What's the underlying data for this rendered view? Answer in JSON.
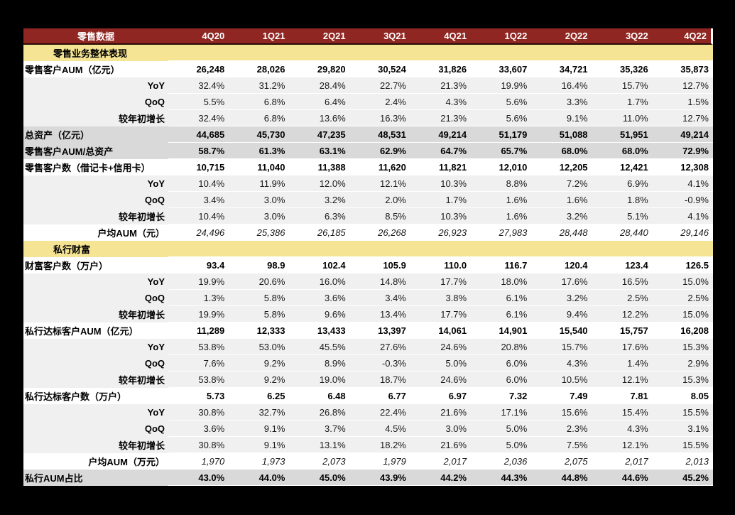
{
  "theme": {
    "page_background": "#000000",
    "header_background": "#8F2621",
    "header_text_color": "#FFFFFF",
    "header_divider_color": "#260B07",
    "section_row_background": "#F5E494",
    "highlight_row_background": "#D9D9D9",
    "sub_row_background": "#F0F0F0"
  },
  "chart_data": {
    "type": "table",
    "title": "零售数据",
    "columns": [
      "4Q20",
      "1Q21",
      "2Q21",
      "3Q21",
      "4Q21",
      "1Q22",
      "2Q22",
      "3Q22",
      "4Q22"
    ],
    "rows": [
      {
        "kind": "section",
        "label": "零售业务整体表现",
        "values": [
          "",
          "",
          "",
          "",
          "",
          "",
          "",
          "",
          ""
        ]
      },
      {
        "kind": "main",
        "label": "零售客户AUM（亿元）",
        "values": [
          "26,248",
          "28,026",
          "29,820",
          "30,524",
          "31,826",
          "33,607",
          "34,721",
          "35,326",
          "35,873"
        ]
      },
      {
        "kind": "sub",
        "label": "YoY",
        "values": [
          "32.4%",
          "31.2%",
          "28.4%",
          "22.7%",
          "21.3%",
          "19.9%",
          "16.4%",
          "15.7%",
          "12.7%"
        ]
      },
      {
        "kind": "sub",
        "label": "QoQ",
        "values": [
          "5.5%",
          "6.8%",
          "6.4%",
          "2.4%",
          "4.3%",
          "5.6%",
          "3.3%",
          "1.7%",
          "1.5%"
        ]
      },
      {
        "kind": "sub",
        "label": "较年初增长",
        "values": [
          "32.4%",
          "6.8%",
          "13.6%",
          "16.3%",
          "21.3%",
          "5.6%",
          "9.1%",
          "11.0%",
          "12.7%"
        ]
      },
      {
        "kind": "main-gray",
        "label": "总资产（亿元）",
        "values": [
          "44,685",
          "45,730",
          "47,235",
          "48,531",
          "49,214",
          "51,179",
          "51,088",
          "51,951",
          "49,214"
        ]
      },
      {
        "kind": "main-gray",
        "label": "零售客户AUM/总资产",
        "values": [
          "58.7%",
          "61.3%",
          "63.1%",
          "62.9%",
          "64.7%",
          "65.7%",
          "68.0%",
          "68.0%",
          "72.9%"
        ]
      },
      {
        "kind": "main",
        "label": "零售客户数（借记卡+信用卡）",
        "values": [
          "10,715",
          "11,040",
          "11,388",
          "11,620",
          "11,821",
          "12,010",
          "12,205",
          "12,421",
          "12,308"
        ]
      },
      {
        "kind": "sub",
        "label": "YoY",
        "values": [
          "10.4%",
          "11.9%",
          "12.0%",
          "12.1%",
          "10.3%",
          "8.8%",
          "7.2%",
          "6.9%",
          "4.1%"
        ]
      },
      {
        "kind": "sub",
        "label": "QoQ",
        "values": [
          "3.4%",
          "3.0%",
          "3.2%",
          "2.0%",
          "1.7%",
          "1.6%",
          "1.6%",
          "1.8%",
          "-0.9%"
        ]
      },
      {
        "kind": "sub",
        "label": "较年初增长",
        "values": [
          "10.4%",
          "3.0%",
          "6.3%",
          "8.5%",
          "10.3%",
          "1.6%",
          "3.2%",
          "5.1%",
          "4.1%"
        ]
      },
      {
        "kind": "italic",
        "label": "户均AUM（元）",
        "values": [
          "24,496",
          "25,386",
          "26,185",
          "26,268",
          "26,923",
          "27,983",
          "28,448",
          "28,440",
          "29,146"
        ]
      },
      {
        "kind": "section",
        "label": "私行财富",
        "values": [
          "",
          "",
          "",
          "",
          "",
          "",
          "",
          "",
          ""
        ]
      },
      {
        "kind": "main",
        "label": "财富客户数（万户）",
        "values": [
          "93.4",
          "98.9",
          "102.4",
          "105.9",
          "110.0",
          "116.7",
          "120.4",
          "123.4",
          "126.5"
        ]
      },
      {
        "kind": "sub",
        "label": "YoY",
        "values": [
          "19.9%",
          "20.6%",
          "16.0%",
          "14.8%",
          "17.7%",
          "18.0%",
          "17.6%",
          "16.5%",
          "15.0%"
        ]
      },
      {
        "kind": "sub",
        "label": "QoQ",
        "values": [
          "1.3%",
          "5.8%",
          "3.6%",
          "3.4%",
          "3.8%",
          "6.1%",
          "3.2%",
          "2.5%",
          "2.5%"
        ]
      },
      {
        "kind": "sub",
        "label": "较年初增长",
        "values": [
          "19.9%",
          "5.8%",
          "9.6%",
          "13.4%",
          "17.7%",
          "6.1%",
          "9.4%",
          "12.2%",
          "15.0%"
        ]
      },
      {
        "kind": "main",
        "label": "私行达标客户AUM（亿元）",
        "values": [
          "11,289",
          "12,333",
          "13,433",
          "13,397",
          "14,061",
          "14,901",
          "15,540",
          "15,757",
          "16,208"
        ]
      },
      {
        "kind": "sub",
        "label": "YoY",
        "values": [
          "53.8%",
          "53.0%",
          "45.5%",
          "27.6%",
          "24.6%",
          "20.8%",
          "15.7%",
          "17.6%",
          "15.3%"
        ]
      },
      {
        "kind": "sub",
        "label": "QoQ",
        "values": [
          "7.6%",
          "9.2%",
          "8.9%",
          "-0.3%",
          "5.0%",
          "6.0%",
          "4.3%",
          "1.4%",
          "2.9%"
        ]
      },
      {
        "kind": "sub",
        "label": "较年初增长",
        "values": [
          "53.8%",
          "9.2%",
          "19.0%",
          "18.7%",
          "24.6%",
          "6.0%",
          "10.5%",
          "12.1%",
          "15.3%"
        ]
      },
      {
        "kind": "main",
        "label": "私行达标客户数（万户）",
        "values": [
          "5.73",
          "6.25",
          "6.48",
          "6.77",
          "6.97",
          "7.32",
          "7.49",
          "7.81",
          "8.05"
        ]
      },
      {
        "kind": "sub",
        "label": "YoY",
        "values": [
          "30.8%",
          "32.7%",
          "26.8%",
          "22.4%",
          "21.6%",
          "17.1%",
          "15.6%",
          "15.4%",
          "15.5%"
        ]
      },
      {
        "kind": "sub",
        "label": "QoQ",
        "values": [
          "3.6%",
          "9.1%",
          "3.7%",
          "4.5%",
          "3.0%",
          "5.0%",
          "2.3%",
          "4.3%",
          "3.1%"
        ]
      },
      {
        "kind": "sub",
        "label": "较年初增长",
        "values": [
          "30.8%",
          "9.1%",
          "13.1%",
          "18.2%",
          "21.6%",
          "5.0%",
          "7.5%",
          "12.1%",
          "15.5%"
        ]
      },
      {
        "kind": "italic",
        "label": "户均AUM（万元）",
        "values": [
          "1,970",
          "1,973",
          "2,073",
          "1,979",
          "2,017",
          "2,036",
          "2,075",
          "2,017",
          "2,013"
        ]
      },
      {
        "kind": "main-gray",
        "label": "私行AUM占比",
        "values": [
          "43.0%",
          "44.0%",
          "45.0%",
          "43.9%",
          "44.2%",
          "44.3%",
          "44.8%",
          "44.6%",
          "45.2%"
        ]
      }
    ]
  }
}
